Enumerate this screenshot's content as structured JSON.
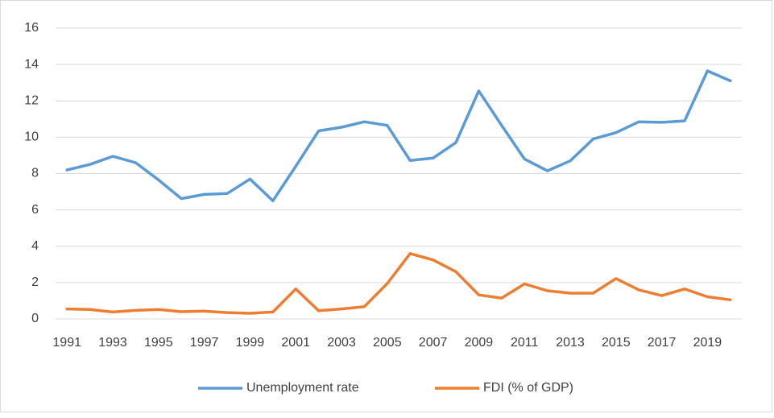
{
  "chart_data": {
    "type": "line",
    "categories": [
      "1991",
      null,
      "1993",
      null,
      "1995",
      null,
      "1997",
      null,
      "1999",
      null,
      "2001",
      null,
      "2003",
      null,
      "2005",
      null,
      "2007",
      null,
      "2009",
      null,
      "2011",
      null,
      "2013",
      null,
      "2015",
      null,
      "2017",
      null,
      "2019",
      null
    ],
    "series": [
      {
        "name": "Unemployment rate",
        "color": "#5b9bd5",
        "values": [
          8.2,
          8.5,
          8.95,
          8.6,
          7.65,
          6.62,
          6.85,
          6.9,
          7.7,
          6.5,
          8.4,
          10.35,
          10.55,
          10.85,
          10.65,
          8.72,
          8.85,
          9.7,
          12.55,
          10.65,
          8.8,
          8.15,
          8.7,
          9.9,
          10.25,
          10.85,
          10.82,
          10.9,
          13.65,
          13.1
        ]
      },
      {
        "name": "FDI (% of GDP)",
        "color": "#ed7d31",
        "values": [
          0.55,
          0.52,
          0.38,
          0.47,
          0.52,
          0.4,
          0.43,
          0.35,
          0.31,
          0.38,
          1.65,
          0.45,
          0.55,
          0.68,
          1.95,
          3.6,
          3.25,
          2.6,
          1.32,
          1.15,
          1.93,
          1.55,
          1.42,
          1.42,
          2.22,
          1.6,
          1.28,
          1.65,
          1.22,
          1.05
        ]
      }
    ],
    "ylim": [
      0,
      16
    ],
    "yticks": [
      0,
      2,
      4,
      6,
      8,
      10,
      12,
      14,
      16
    ],
    "grid": true,
    "legend": "bottom"
  }
}
